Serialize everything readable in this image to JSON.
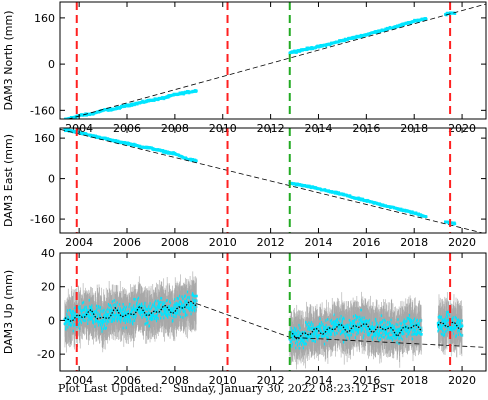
{
  "footer": {
    "label": "Plot Last Updated:",
    "timestamp": "Sunday, January 30, 2022 08:23:12 PST"
  },
  "colors": {
    "data": "#00e5ff",
    "error_bars": "#a8a8a8",
    "trend": "#000000",
    "red_events": "#ff2020",
    "green_events": "#22aa22"
  },
  "chart_data": [
    {
      "type": "scatter",
      "ylabel": "DAM3 North (mm)",
      "xlim": [
        2003.2,
        2021.0
      ],
      "ylim": [
        -190,
        215
      ],
      "yticks": [
        -160,
        0,
        160
      ],
      "xticks": [
        2004,
        2006,
        2008,
        2010,
        2012,
        2014,
        2016,
        2018,
        2020
      ],
      "grid": false,
      "red_lines": [
        2003.9,
        2010.2,
        2019.5
      ],
      "green_lines": [
        2012.8
      ],
      "trend_line": {
        "x": [
          2003.2,
          2021.0
        ],
        "y": [
          -198,
          208
        ]
      },
      "series": [
        {
          "x": [
            2003.4,
            2004.0,
            2004.5,
            2005.0,
            2005.5,
            2006.0,
            2006.5,
            2007.0,
            2007.5,
            2008.0,
            2008.5,
            2008.9
          ],
          "y": [
            -193,
            -178,
            -173,
            -160,
            -155,
            -143,
            -135,
            -125,
            -118,
            -106,
            -98,
            -92
          ]
        },
        {
          "x": [
            2012.8,
            2013.5,
            2014.0,
            2014.5,
            2015.0,
            2015.5,
            2016.0,
            2016.5,
            2017.0,
            2017.5,
            2018.0,
            2018.5
          ],
          "y": [
            40,
            52,
            60,
            70,
            82,
            92,
            102,
            114,
            124,
            136,
            148,
            158
          ]
        },
        {
          "x": [
            2019.3,
            2019.5,
            2019.7
          ],
          "y": [
            172,
            178,
            176
          ]
        }
      ]
    },
    {
      "type": "scatter",
      "ylabel": "DAM3 East (mm)",
      "xlim": [
        2003.2,
        2021.0
      ],
      "ylim": [
        -215,
        200
      ],
      "yticks": [
        -160,
        0,
        160
      ],
      "xticks": [
        2004,
        2006,
        2008,
        2010,
        2012,
        2014,
        2016,
        2018,
        2020
      ],
      "grid": false,
      "red_lines": [
        2003.9,
        2010.2,
        2019.5
      ],
      "green_lines": [
        2012.8
      ],
      "trend_line": {
        "x": [
          2003.2,
          2021.0
        ],
        "y": [
          195,
          -218
        ]
      },
      "series": [
        {
          "x": [
            2003.4,
            2004.0,
            2004.5,
            2005.0,
            2005.5,
            2006.0,
            2006.5,
            2007.0,
            2007.5,
            2008.0,
            2008.5,
            2008.9
          ],
          "y": [
            193,
            182,
            170,
            160,
            148,
            140,
            128,
            120,
            108,
            98,
            78,
            70
          ]
        },
        {
          "x": [
            2012.8,
            2013.5,
            2014.0,
            2014.5,
            2015.0,
            2015.5,
            2016.0,
            2016.5,
            2017.0,
            2017.5,
            2018.0,
            2018.5
          ],
          "y": [
            -18,
            -30,
            -40,
            -52,
            -62,
            -76,
            -88,
            -100,
            -112,
            -124,
            -136,
            -150
          ]
        },
        {
          "x": [
            2019.3,
            2019.5,
            2019.7
          ],
          "y": [
            -170,
            -176,
            -178
          ]
        }
      ]
    },
    {
      "type": "scatter",
      "ylabel": "DAM3 Up (mm)",
      "xlim": [
        2003.2,
        2021.0
      ],
      "ylim": [
        -30,
        40
      ],
      "yticks": [
        -20,
        0,
        20,
        40
      ],
      "xticks": [
        2004,
        2006,
        2008,
        2010,
        2012,
        2014,
        2016,
        2018,
        2020
      ],
      "grid": false,
      "red_lines": [
        2003.9,
        2010.2,
        2019.5
      ],
      "green_lines": [
        2012.8
      ],
      "trend_line": {
        "x": [
          2008.9,
          2012.8,
          2021.0
        ],
        "y": [
          10,
          -10,
          -16
        ]
      },
      "series": [
        {
          "x": [
            2003.4,
            2004.0,
            2004.5,
            2005.0,
            2005.5,
            2006.0,
            2006.5,
            2007.0,
            2007.5,
            2008.0,
            2008.5,
            2008.9
          ],
          "y": [
            0,
            2,
            5,
            0,
            6,
            2,
            7,
            3,
            8,
            5,
            10,
            10
          ]
        },
        {
          "x": [
            2012.8,
            2013.2,
            2013.8,
            2014.3,
            2014.8,
            2015.3,
            2015.8,
            2016.3,
            2016.8,
            2017.3,
            2017.8,
            2018.3
          ],
          "y": [
            -8,
            -10,
            -6,
            -7,
            -3,
            -6,
            -2,
            -6,
            -4,
            -8,
            -3,
            -5
          ]
        },
        {
          "x": [
            2019.0,
            2019.5,
            2020.0
          ],
          "y": [
            -3,
            -2,
            -4
          ]
        }
      ]
    }
  ]
}
